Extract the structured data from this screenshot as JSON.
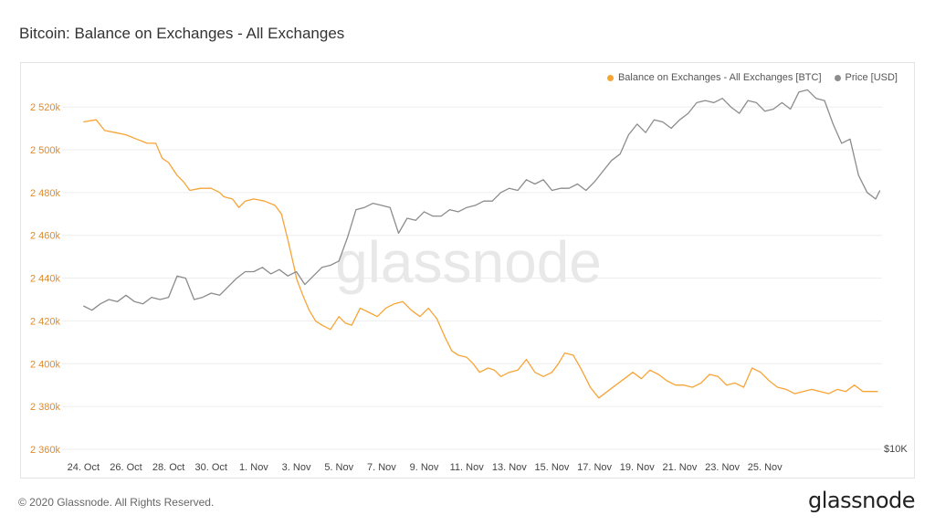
{
  "title": "Bitcoin: Balance on Exchanges - All Exchanges",
  "footer": {
    "copyright": "© 2020 Glassnode. All Rights Reserved.",
    "logo": "glassnode"
  },
  "watermark": "glassnode",
  "colors": {
    "balance": "#f7a437",
    "price": "#8c8c8c",
    "grid": "#eeeeee",
    "axis_text": "#e08a2a"
  },
  "chart_data": {
    "type": "line",
    "title": "Bitcoin: Balance on Exchanges - All Exchanges",
    "x_ticks": [
      "24. Oct",
      "26. Oct",
      "28. Oct",
      "30. Oct",
      "1. Nov",
      "3. Nov",
      "5. Nov",
      "7. Nov",
      "9. Nov",
      "11. Nov",
      "13. Nov",
      "15. Nov",
      "17. Nov",
      "19. Nov",
      "21. Nov",
      "23. Nov",
      "25. Nov"
    ],
    "y_left": {
      "ticks": [
        2360000,
        2380000,
        2400000,
        2420000,
        2440000,
        2460000,
        2480000,
        2500000,
        2520000
      ],
      "tick_labels": [
        "2 360k",
        "2 380k",
        "2 400k",
        "2 420k",
        "2 440k",
        "2 460k",
        "2 480k",
        "2 500k",
        "2 520k"
      ],
      "range": [
        2360000,
        2532000
      ]
    },
    "y_right": {
      "tick_labels": [
        "$10K"
      ],
      "scale": "log",
      "range": [
        10000,
        20000
      ]
    },
    "grid": true,
    "legend_position": "top-right",
    "series": [
      {
        "name": "Balance on Exchanges - All Exchanges [BTC]",
        "axis": "left",
        "x": [
          23.0,
          23.6,
          24.0,
          24.5,
          25.0,
          25.5,
          26.0,
          26.4,
          26.7,
          27.0,
          27.4,
          27.7,
          28.0,
          28.5,
          29.0,
          29.4,
          29.6,
          30.0,
          30.3,
          30.6,
          31.0,
          31.5,
          32.0,
          32.3,
          32.6,
          32.9,
          33.0,
          33.3,
          33.6,
          33.9,
          34.2,
          34.6,
          35.0,
          35.3,
          35.6,
          36.0,
          36.4,
          36.8,
          37.2,
          37.6,
          38.0,
          38.4,
          38.8,
          39.2,
          39.6,
          40.0,
          40.3,
          40.6,
          41.0,
          41.3,
          41.6,
          42.0,
          42.3,
          42.6,
          43.0,
          43.4,
          43.8,
          44.2,
          44.6,
          45.0,
          45.3,
          45.6,
          46.0,
          46.4,
          46.8,
          47.2,
          47.6,
          48.0,
          48.4,
          48.8,
          49.2,
          49.6,
          50.0,
          50.4,
          50.8,
          51.2,
          51.6,
          52.0,
          52.4,
          52.8,
          53.2,
          53.6,
          54.0,
          54.4,
          54.8,
          55.2,
          55.6,
          56.0,
          56.4,
          56.8,
          57.2,
          57.6,
          58.0,
          58.4,
          58.8,
          59.2,
          59.6,
          60.0,
          60.3
        ],
        "y": [
          2513000,
          2514000,
          2509000,
          2508000,
          2507000,
          2505000,
          2503000,
          2503000,
          2496000,
          2494000,
          2488000,
          2485000,
          2481000,
          2482000,
          2482000,
          2480000,
          2478000,
          2477000,
          2473000,
          2476000,
          2477000,
          2476000,
          2474000,
          2470000,
          2458000,
          2445000,
          2440000,
          2432000,
          2425000,
          2420000,
          2418000,
          2416000,
          2422000,
          2419000,
          2418000,
          2426000,
          2424000,
          2422000,
          2426000,
          2428000,
          2429000,
          2425000,
          2422000,
          2426000,
          2421000,
          2412000,
          2406000,
          2404000,
          2403000,
          2400000,
          2396000,
          2398000,
          2397000,
          2394000,
          2396000,
          2397000,
          2402000,
          2396000,
          2394000,
          2396000,
          2400000,
          2405000,
          2404000,
          2397000,
          2389000,
          2384000,
          2387000,
          2390000,
          2393000,
          2396000,
          2393000,
          2397000,
          2395000,
          2392000,
          2390000,
          2390000,
          2389000,
          2391000,
          2395000,
          2394000,
          2390000,
          2391000,
          2389000,
          2398000,
          2396000,
          2392000,
          2389000,
          2388000,
          2386000,
          2387000,
          2388000,
          2387000,
          2386000,
          2388000,
          2387000,
          2390000,
          2387000,
          2387000,
          2387000
        ]
      },
      {
        "name": "Price [USD]",
        "axis": "right",
        "x": [
          23.0,
          23.4,
          23.8,
          24.2,
          24.6,
          25.0,
          25.4,
          25.8,
          26.2,
          26.6,
          27.0,
          27.4,
          27.8,
          28.2,
          28.6,
          29.0,
          29.4,
          29.8,
          30.2,
          30.6,
          31.0,
          31.4,
          31.8,
          32.2,
          32.6,
          33.0,
          33.4,
          33.8,
          34.2,
          34.6,
          35.0,
          35.4,
          35.8,
          36.2,
          36.6,
          37.0,
          37.4,
          37.8,
          38.2,
          38.6,
          39.0,
          39.4,
          39.8,
          40.2,
          40.6,
          41.0,
          41.4,
          41.8,
          42.2,
          42.6,
          43.0,
          43.4,
          43.8,
          44.2,
          44.6,
          45.0,
          45.4,
          45.8,
          46.2,
          46.6,
          47.0,
          47.4,
          47.8,
          48.2,
          48.6,
          49.0,
          49.4,
          49.8,
          50.2,
          50.6,
          51.0,
          51.4,
          51.8,
          52.2,
          52.6,
          53.0,
          53.4,
          53.8,
          54.2,
          54.6,
          55.0,
          55.4,
          55.8,
          56.2,
          56.6,
          57.0,
          57.4,
          57.8,
          58.2,
          58.6,
          59.0,
          59.4,
          59.8,
          60.2,
          60.4
        ],
        "y": [
          2427000,
          2425000,
          2428000,
          2430000,
          2429000,
          2432000,
          2429000,
          2428000,
          2431000,
          2430000,
          2431000,
          2441000,
          2440000,
          2430000,
          2431000,
          2433000,
          2432000,
          2436000,
          2440000,
          2443000,
          2443000,
          2445000,
          2442000,
          2444000,
          2441000,
          2443000,
          2437000,
          2441000,
          2445000,
          2446000,
          2448000,
          2459000,
          2472000,
          2473000,
          2475000,
          2474000,
          2473000,
          2461000,
          2468000,
          2467000,
          2471000,
          2469000,
          2469000,
          2472000,
          2471000,
          2473000,
          2474000,
          2476000,
          2476000,
          2480000,
          2482000,
          2481000,
          2486000,
          2484000,
          2486000,
          2481000,
          2482000,
          2482000,
          2484000,
          2481000,
          2485000,
          2490000,
          2495000,
          2498000,
          2507000,
          2512000,
          2508000,
          2514000,
          2513000,
          2510000,
          2514000,
          2517000,
          2522000,
          2523000,
          2522000,
          2524000,
          2520000,
          2517000,
          2523000,
          2522000,
          2518000,
          2519000,
          2522000,
          2519000,
          2527000,
          2528000,
          2524000,
          2523000,
          2512000,
          2503000,
          2505000,
          2488000,
          2480000,
          2477000,
          2481000
        ]
      }
    ]
  }
}
